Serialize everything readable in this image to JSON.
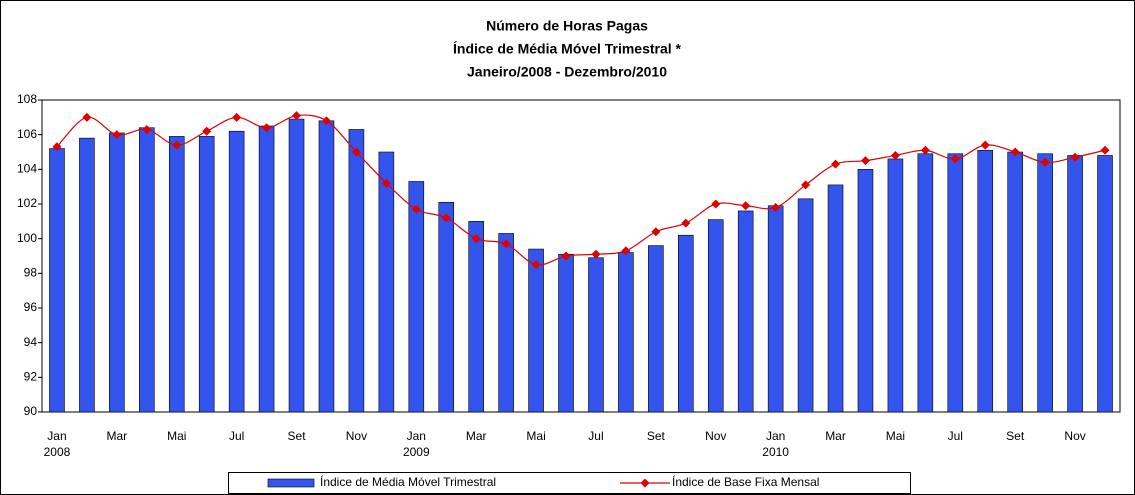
{
  "chart_data": {
    "type": "bar_line",
    "title": [
      "Número de Horas Pagas",
      "Índice de Média Móvel Trimestral *",
      "Janeiro/2008 - Dezembro/2010"
    ],
    "categories": [
      "Jan",
      null,
      "Mar",
      null,
      "Mai",
      null,
      "Jul",
      null,
      "Set",
      null,
      "Nov",
      null,
      "Jan",
      null,
      "Mar",
      null,
      "Mai",
      null,
      "Jul",
      null,
      "Set",
      null,
      "Nov",
      null,
      "Jan",
      null,
      "Mar",
      null,
      "Mai",
      null,
      "Jul",
      null,
      "Set",
      null,
      "Nov",
      null
    ],
    "category_groups": [
      "2008",
      "2009",
      "2010"
    ],
    "series": [
      {
        "name": "Índice de Média Móvel Trimestral",
        "type": "bar",
        "color": "#3355ee",
        "values": [
          105.2,
          105.8,
          106.1,
          106.4,
          105.9,
          105.9,
          106.2,
          106.5,
          106.9,
          106.8,
          106.3,
          105.0,
          103.3,
          102.1,
          101.0,
          100.3,
          99.4,
          99.1,
          98.9,
          99.2,
          99.6,
          100.2,
          101.1,
          101.6,
          101.9,
          102.3,
          103.1,
          104.0,
          104.6,
          104.9,
          104.9,
          105.1,
          105.0,
          104.9,
          104.8,
          104.8
        ]
      },
      {
        "name": "Índice de Base Fixa Mensal",
        "type": "line",
        "color": "#e00000",
        "values": [
          105.3,
          107.0,
          106.0,
          106.3,
          105.4,
          106.2,
          107.0,
          106.4,
          107.1,
          106.8,
          105.0,
          103.2,
          101.7,
          101.2,
          100.0,
          99.7,
          98.5,
          99.0,
          99.1,
          99.3,
          100.4,
          100.9,
          102.0,
          101.9,
          101.8,
          103.1,
          104.3,
          104.5,
          104.8,
          105.1,
          104.6,
          105.4,
          105.0,
          104.4,
          104.7,
          105.1
        ]
      }
    ],
    "ylim": [
      90,
      108
    ],
    "yticks": [
      90,
      92,
      94,
      96,
      98,
      100,
      102,
      104,
      106,
      108
    ],
    "grid": false
  }
}
